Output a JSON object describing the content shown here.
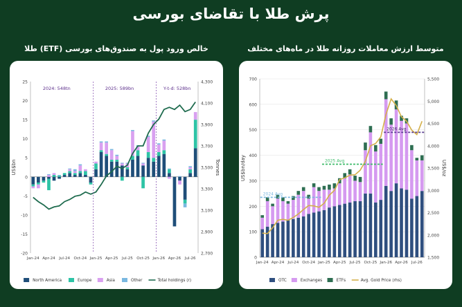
{
  "page": {
    "title": "پرش طلا با تقاضای بورسی",
    "left_heading": "خالص ورود پول به صندوق‌های بورسی (ETF) طلا",
    "right_heading": "متوسط ارزش معاملات روزانه طلا در ماه‌های مختلف"
  },
  "colors": {
    "background": "#0f3d22",
    "north_america": "#1f4e79",
    "europe": "#2ec4a6",
    "asia": "#d9a0f0",
    "other": "#7ab8e0",
    "total_line": "#1e6b4e",
    "otc": "#2f4f7f",
    "exchanges": "#d59af0",
    "etfs": "#2e6e52",
    "gold_price": "#d4b04a",
    "avg_2024": "#7ab8e0",
    "avg_2025": "#3dbb6a",
    "avg_2026": "#5b3d91"
  },
  "chart_data": [
    {
      "type": "bar",
      "stacked": true,
      "ylabel": "US$bn",
      "y2label": "Tonnes",
      "ylim": [
        -20,
        25
      ],
      "yticks": [
        -20,
        -15,
        -10,
        -5,
        0,
        5,
        10,
        15,
        20,
        25
      ],
      "y2lim": [
        2700,
        4300
      ],
      "y2ticks": [
        2700,
        2900,
        3100,
        3300,
        3500,
        3700,
        3900,
        4100,
        4300
      ],
      "xtick_labels": [
        "Jan-24",
        "Apr-24",
        "Jul-24",
        "Oct-24",
        "Jan-25",
        "Apr-25",
        "Jul-25",
        "Oct-25",
        "Jan-26",
        "Apr-26",
        "Jul-26"
      ],
      "xtick_index": [
        0,
        3,
        6,
        9,
        12,
        15,
        18,
        21,
        24,
        27,
        30
      ],
      "annotations": [
        "2024: 548tn",
        "2025: 589bn",
        "Y-t-d: 528bn"
      ],
      "dividers_at": [
        11.5,
        23.5
      ],
      "legend": [
        "North America",
        "Europe",
        "Asia",
        "Other",
        "Total holdings (r)"
      ],
      "series": [
        {
          "name": "North America",
          "values": [
            -2.0,
            -1.5,
            -1.0,
            -0.5,
            -1.0,
            -0.5,
            0.5,
            1.0,
            0.5,
            1.0,
            0.5,
            -1.5,
            2.0,
            6.5,
            5.5,
            4.0,
            4.0,
            3.0,
            2.0,
            4.5,
            5.5,
            3.0,
            5.0,
            4.0,
            5.5,
            6.0,
            1.0,
            -13.0,
            -1.0,
            -6.0,
            1.0,
            7.5
          ]
        },
        {
          "name": "Europe",
          "values": [
            -0.5,
            -0.5,
            -0.5,
            -3.0,
            0.5,
            0.3,
            0.5,
            0.5,
            0.5,
            0.5,
            1.0,
            -0.5,
            1.5,
            0.5,
            0.5,
            0.5,
            0.5,
            -1.0,
            0.5,
            1.0,
            1.5,
            -3.0,
            1.5,
            1.0,
            1.0,
            1.0,
            1.0,
            0,
            0,
            -1.0,
            1.0,
            7.5
          ]
        },
        {
          "name": "Asia",
          "values": [
            -0.5,
            -1.0,
            0,
            0.5,
            0.5,
            0,
            0,
            0.5,
            0.5,
            1.5,
            0.5,
            0,
            0.5,
            2.0,
            3.0,
            2.5,
            1.0,
            0.5,
            1.0,
            6.5,
            1.0,
            0.5,
            4.0,
            9.5,
            2.0,
            2.5,
            -0.5,
            0,
            -1.0,
            0,
            0.5,
            2.0
          ]
        },
        {
          "name": "Other",
          "values": [
            0,
            0,
            0,
            0.2,
            0,
            0.2,
            0,
            0.2,
            0.5,
            0.3,
            0,
            0,
            0,
            0.3,
            0.3,
            0.3,
            0.3,
            0.2,
            0.2,
            0.3,
            0.3,
            0.2,
            0.3,
            0.3,
            0.3,
            0.3,
            0.2,
            0,
            0.2,
            -1.0,
            0.3,
            0
          ]
        },
        {
          "name": "Total holdings (r)",
          "axis": "right",
          "values": [
            3220,
            3180,
            3150,
            3110,
            3130,
            3140,
            3180,
            3200,
            3230,
            3240,
            3270,
            3250,
            3270,
            3340,
            3420,
            3460,
            3510,
            3490,
            3520,
            3630,
            3700,
            3700,
            3820,
            3900,
            3950,
            4040,
            4060,
            4040,
            4080,
            4020,
            4040,
            4110
          ]
        }
      ]
    },
    {
      "type": "bar",
      "stacked": true,
      "ylabel": "US$bn/day",
      "y2label": "US$/oz",
      "ylim": [
        0,
        700
      ],
      "yticks": [
        0,
        100,
        200,
        300,
        400,
        500,
        600,
        700
      ],
      "y2lim": [
        1500,
        5500
      ],
      "y2ticks": [
        1500,
        2000,
        2500,
        3000,
        3500,
        4000,
        4500,
        5000,
        5500
      ],
      "xtick_labels": [
        "Jan-24",
        "Apr-24",
        "Jul-24",
        "Oct-24",
        "Jan-25",
        "Apr-25",
        "Jul-25",
        "Oct-25",
        "Jan-26",
        "Apr-26",
        "Jul-26"
      ],
      "xtick_index": [
        0,
        3,
        6,
        9,
        12,
        15,
        18,
        21,
        24,
        27,
        30
      ],
      "averages": [
        {
          "label": "2024 Avg",
          "value": 235,
          "from": 0,
          "to": 11
        },
        {
          "label": "2025 Avg",
          "value": 365,
          "from": 12,
          "to": 23
        },
        {
          "label": "2026 Avg",
          "value": 490,
          "from": 24,
          "to": 31
        }
      ],
      "legend": [
        "OTC",
        "Exchanges",
        "ETFs",
        "Avg. Gold Price (rhs)"
      ],
      "series": [
        {
          "name": "OTC",
          "values": [
            110,
            120,
            130,
            135,
            140,
            145,
            150,
            155,
            160,
            170,
            175,
            180,
            185,
            195,
            200,
            205,
            210,
            215,
            220,
            220,
            250,
            250,
            215,
            225,
            280,
            260,
            290,
            270,
            265,
            230,
            240,
            260
          ]
        },
        {
          "name": "Exchanges",
          "values": [
            45,
            100,
            70,
            95,
            80,
            65,
            75,
            90,
            100,
            60,
            100,
            80,
            80,
            70,
            70,
            85,
            100,
            110,
            80,
            75,
            170,
            240,
            200,
            220,
            340,
            260,
            290,
            265,
            260,
            190,
            140,
            120
          ]
        },
        {
          "name": "ETFs",
          "values": [
            10,
            15,
            10,
            15,
            15,
            10,
            15,
            15,
            15,
            15,
            15,
            15,
            15,
            20,
            20,
            20,
            20,
            20,
            20,
            20,
            30,
            25,
            25,
            20,
            30,
            25,
            35,
            20,
            20,
            20,
            10,
            20
          ]
        },
        {
          "name": "Avg. Gold Price (rhs)",
          "axis": "right",
          "values": [
            2040,
            2030,
            2160,
            2330,
            2350,
            2330,
            2390,
            2470,
            2570,
            2660,
            2650,
            2620,
            2710,
            2890,
            3000,
            3240,
            3280,
            3340,
            3350,
            3450,
            3650,
            4000,
            4050,
            4200,
            4700,
            5050,
            4900,
            4650,
            4550,
            4350,
            4250,
            4550
          ]
        }
      ]
    }
  ]
}
